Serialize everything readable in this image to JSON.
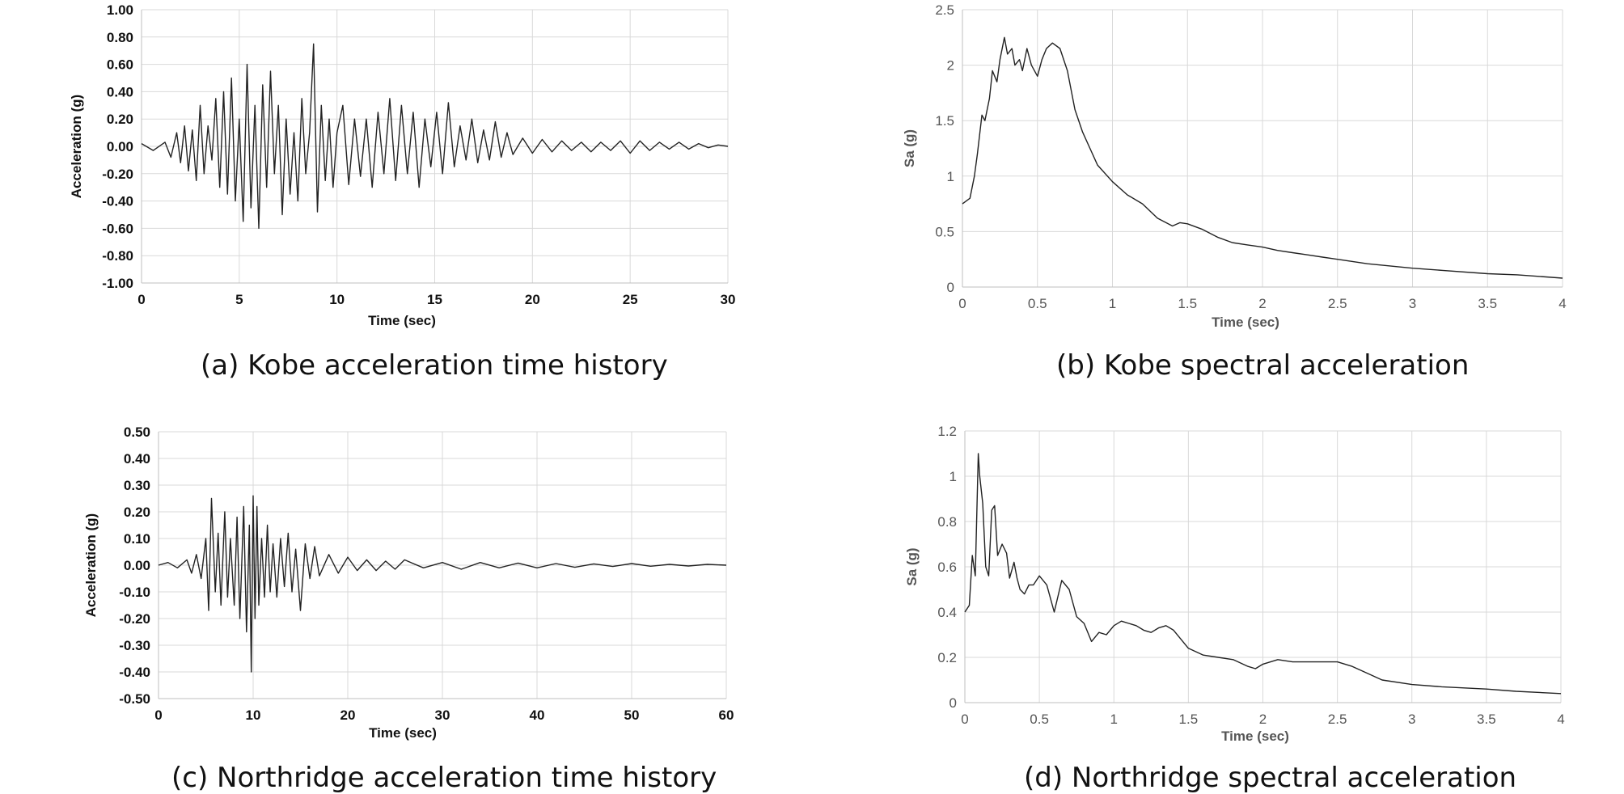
{
  "chart_data": [
    {
      "type": "line",
      "xlabel": "Time (sec)",
      "ylabel": "Acceleration (g)",
      "xlim": [
        0,
        30
      ],
      "ylim": [
        -1.0,
        1.0
      ],
      "xticks": [
        "0",
        "5",
        "10",
        "15",
        "20",
        "25",
        "30"
      ],
      "yticks": [
        "-1.00",
        "-0.80",
        "-0.60",
        "-0.40",
        "-0.20",
        "0.00",
        "0.20",
        "0.40",
        "0.60",
        "0.80",
        "1.00"
      ],
      "grid": true,
      "line_color": "#222222",
      "series": [
        {
          "x": [
            0,
            0.6,
            1.2,
            1.5,
            1.8,
            2.0,
            2.2,
            2.4,
            2.6,
            2.8,
            3.0,
            3.2,
            3.4,
            3.6,
            3.8,
            4.0,
            4.2,
            4.4,
            4.6,
            4.8,
            5.0,
            5.2,
            5.4,
            5.6,
            5.8,
            6.0,
            6.2,
            6.4,
            6.6,
            6.8,
            7.0,
            7.2,
            7.4,
            7.6,
            7.8,
            8.0,
            8.2,
            8.4,
            8.6,
            8.8,
            9.0,
            9.2,
            9.4,
            9.6,
            9.8,
            10.0,
            10.3,
            10.6,
            10.9,
            11.2,
            11.5,
            11.8,
            12.1,
            12.4,
            12.7,
            13.0,
            13.3,
            13.6,
            13.9,
            14.2,
            14.5,
            14.8,
            15.1,
            15.4,
            15.7,
            16.0,
            16.3,
            16.6,
            16.9,
            17.2,
            17.5,
            17.8,
            18.1,
            18.4,
            18.7,
            19.0,
            19.5,
            20.0,
            20.5,
            21.0,
            21.5,
            22.0,
            22.5,
            23.0,
            23.5,
            24.0,
            24.5,
            25.0,
            25.5,
            26.0,
            26.5,
            27.0,
            27.5,
            28.0,
            28.5,
            29.0,
            29.5,
            30.0
          ],
          "y": [
            0.02,
            -0.03,
            0.03,
            -0.08,
            0.1,
            -0.12,
            0.15,
            -0.18,
            0.12,
            -0.25,
            0.3,
            -0.2,
            0.15,
            -0.1,
            0.35,
            -0.3,
            0.4,
            -0.35,
            0.5,
            -0.4,
            0.2,
            -0.55,
            0.6,
            -0.45,
            0.3,
            -0.6,
            0.45,
            -0.3,
            0.55,
            -0.2,
            0.3,
            -0.5,
            0.2,
            -0.35,
            0.1,
            -0.4,
            0.35,
            -0.2,
            0.1,
            0.75,
            -0.48,
            0.3,
            -0.25,
            0.2,
            -0.3,
            0.1,
            0.3,
            -0.28,
            0.2,
            -0.22,
            0.2,
            -0.3,
            0.25,
            -0.2,
            0.35,
            -0.25,
            0.3,
            -0.2,
            0.25,
            -0.3,
            0.2,
            -0.15,
            0.25,
            -0.2,
            0.32,
            -0.15,
            0.15,
            -0.1,
            0.2,
            -0.12,
            0.12,
            -0.1,
            0.18,
            -0.08,
            0.1,
            -0.06,
            0.06,
            -0.05,
            0.05,
            -0.04,
            0.04,
            -0.03,
            0.03,
            -0.04,
            0.03,
            -0.03,
            0.04,
            -0.05,
            0.04,
            -0.03,
            0.03,
            -0.02,
            0.03,
            -0.02,
            0.02,
            -0.01,
            0.01,
            0.0
          ]
        }
      ]
    },
    {
      "type": "line",
      "xlabel": "Time (sec)",
      "ylabel": "Sa (g)",
      "xlim": [
        0,
        4
      ],
      "ylim": [
        0,
        2.5
      ],
      "xticks": [
        "0",
        "0.5",
        "1",
        "1.5",
        "2",
        "2.5",
        "3",
        "3.5",
        "4"
      ],
      "yticks": [
        "0",
        "0.5",
        "1",
        "1.5",
        "2",
        "2.5"
      ],
      "grid": true,
      "line_color": "#222222",
      "series": [
        {
          "x": [
            0,
            0.05,
            0.08,
            0.1,
            0.13,
            0.15,
            0.18,
            0.2,
            0.23,
            0.25,
            0.28,
            0.3,
            0.33,
            0.35,
            0.38,
            0.4,
            0.43,
            0.46,
            0.5,
            0.53,
            0.56,
            0.6,
            0.65,
            0.7,
            0.75,
            0.8,
            0.85,
            0.9,
            1.0,
            1.1,
            1.2,
            1.3,
            1.4,
            1.45,
            1.5,
            1.6,
            1.7,
            1.8,
            1.9,
            2.0,
            2.1,
            2.2,
            2.3,
            2.4,
            2.5,
            2.7,
            3.0,
            3.2,
            3.5,
            3.7,
            4.0
          ],
          "y": [
            0.75,
            0.8,
            1.0,
            1.2,
            1.55,
            1.5,
            1.7,
            1.95,
            1.85,
            2.05,
            2.25,
            2.1,
            2.15,
            2.0,
            2.05,
            1.95,
            2.15,
            2.0,
            1.9,
            2.05,
            2.15,
            2.2,
            2.15,
            1.95,
            1.6,
            1.4,
            1.25,
            1.1,
            0.95,
            0.83,
            0.75,
            0.62,
            0.55,
            0.58,
            0.57,
            0.52,
            0.45,
            0.4,
            0.38,
            0.36,
            0.33,
            0.31,
            0.29,
            0.27,
            0.25,
            0.21,
            0.17,
            0.15,
            0.12,
            0.11,
            0.08
          ]
        }
      ]
    },
    {
      "type": "line",
      "xlabel": "Time (sec)",
      "ylabel": "Acceleration (g)",
      "xlim": [
        0,
        60
      ],
      "ylim": [
        -0.5,
        0.5
      ],
      "xticks": [
        "0",
        "10",
        "20",
        "30",
        "40",
        "50",
        "60"
      ],
      "yticks": [
        "-0.50",
        "-0.40",
        "-0.30",
        "-0.20",
        "-0.10",
        "0.00",
        "0.10",
        "0.20",
        "0.30",
        "0.40",
        "0.50"
      ],
      "grid": true,
      "line_color": "#222222",
      "series": [
        {
          "x": [
            0,
            1,
            2,
            3,
            3.5,
            4,
            4.5,
            5,
            5.3,
            5.6,
            6,
            6.3,
            6.6,
            7,
            7.3,
            7.6,
            8,
            8.3,
            8.6,
            9,
            9.3,
            9.6,
            9.8,
            10,
            10.2,
            10.4,
            10.6,
            10.9,
            11.2,
            11.5,
            11.8,
            12.1,
            12.5,
            12.9,
            13.3,
            13.7,
            14.1,
            14.5,
            15,
            15.5,
            16,
            16.5,
            17,
            18,
            19,
            20,
            21,
            22,
            23,
            24,
            25,
            26,
            28,
            30,
            32,
            34,
            36,
            38,
            40,
            42,
            44,
            46,
            48,
            50,
            52,
            54,
            56,
            58,
            60
          ],
          "y": [
            0,
            0.01,
            -0.01,
            0.02,
            -0.03,
            0.04,
            -0.05,
            0.1,
            -0.17,
            0.25,
            -0.1,
            0.12,
            -0.15,
            0.2,
            -0.12,
            0.1,
            -0.15,
            0.18,
            -0.2,
            0.22,
            -0.25,
            0.15,
            -0.4,
            0.26,
            -0.2,
            0.22,
            -0.15,
            0.1,
            -0.12,
            0.15,
            -0.1,
            0.08,
            -0.12,
            0.1,
            -0.08,
            0.12,
            -0.1,
            0.06,
            -0.17,
            0.08,
            -0.05,
            0.07,
            -0.04,
            0.04,
            -0.03,
            0.03,
            -0.02,
            0.02,
            -0.02,
            0.015,
            -0.015,
            0.02,
            -0.01,
            0.01,
            -0.015,
            0.01,
            -0.01,
            0.008,
            -0.01,
            0.006,
            -0.008,
            0.005,
            -0.005,
            0.006,
            -0.004,
            0.003,
            -0.003,
            0.003,
            0.0
          ]
        }
      ]
    },
    {
      "type": "line",
      "xlabel": "Time (sec)",
      "ylabel": "Sa (g)",
      "xlim": [
        0,
        4
      ],
      "ylim": [
        0,
        1.2
      ],
      "xticks": [
        "0",
        "0.5",
        "1",
        "1.5",
        "2",
        "2.5",
        "3",
        "3.5",
        "4"
      ],
      "yticks": [
        "0",
        "0.2",
        "0.4",
        "0.6",
        "0.8",
        "1",
        "1.2"
      ],
      "grid": true,
      "line_color": "#222222",
      "series": [
        {
          "x": [
            0,
            0.03,
            0.05,
            0.07,
            0.09,
            0.1,
            0.12,
            0.14,
            0.16,
            0.18,
            0.2,
            0.22,
            0.25,
            0.28,
            0.3,
            0.33,
            0.35,
            0.37,
            0.4,
            0.43,
            0.46,
            0.5,
            0.55,
            0.6,
            0.65,
            0.7,
            0.75,
            0.8,
            0.85,
            0.9,
            0.95,
            1.0,
            1.05,
            1.1,
            1.15,
            1.2,
            1.25,
            1.3,
            1.35,
            1.4,
            1.5,
            1.6,
            1.7,
            1.8,
            1.9,
            1.95,
            2.0,
            2.1,
            2.2,
            2.3,
            2.4,
            2.5,
            2.6,
            2.7,
            2.8,
            3.0,
            3.2,
            3.5,
            3.7,
            4.0
          ],
          "y": [
            0.4,
            0.43,
            0.65,
            0.56,
            1.1,
            1.0,
            0.88,
            0.6,
            0.56,
            0.85,
            0.87,
            0.65,
            0.7,
            0.66,
            0.55,
            0.62,
            0.55,
            0.5,
            0.48,
            0.52,
            0.52,
            0.56,
            0.52,
            0.4,
            0.54,
            0.5,
            0.38,
            0.35,
            0.27,
            0.31,
            0.3,
            0.34,
            0.36,
            0.35,
            0.34,
            0.32,
            0.31,
            0.33,
            0.34,
            0.32,
            0.24,
            0.21,
            0.2,
            0.19,
            0.16,
            0.15,
            0.17,
            0.19,
            0.18,
            0.18,
            0.18,
            0.18,
            0.16,
            0.13,
            0.1,
            0.08,
            0.07,
            0.06,
            0.05,
            0.04
          ]
        }
      ]
    }
  ],
  "captions": {
    "a": "(a) Kobe acceleration time history",
    "b": "(b) Kobe spectral acceleration",
    "c": "(c) Northridge acceleration time history",
    "d": "(d) Northridge spectral acceleration"
  }
}
